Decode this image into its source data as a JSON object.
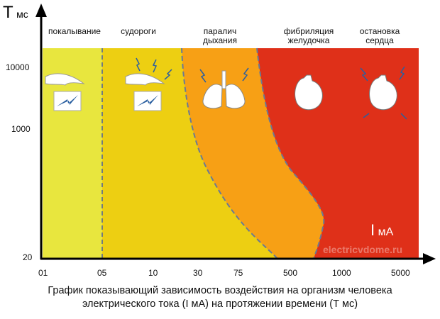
{
  "y_axis": {
    "label_big": "T",
    "label_small": "мс",
    "ticks": [
      "10000",
      "1000",
      "20"
    ]
  },
  "x_axis": {
    "label_big": "I",
    "label_small": "мА",
    "ticks": [
      "01",
      "05",
      "10",
      "30",
      "75",
      "500",
      "1000",
      "5000"
    ]
  },
  "zones": [
    {
      "label": "покалывание",
      "color": "#e8e63e",
      "icon": "hand-shock-icon"
    },
    {
      "label": "судороги",
      "color": "#edcf12",
      "icon": "hand-shock-sparks-icon"
    },
    {
      "label": "паралич\nдыхания",
      "color": "#f7a015",
      "icon": "lungs-icon"
    },
    {
      "label": "фибриляция\nжелудочка",
      "color": "#df3019",
      "icon": "heart-icon"
    },
    {
      "label": "остановка\nсердца",
      "color": "#df3019",
      "icon": "heart-sparks-icon"
    }
  ],
  "watermark": "electricvdome.ru",
  "caption": {
    "line1": "График показывающий зависимость воздействия на организм человека",
    "line2": "электрического тока (I мА) на протяжении времени (Т мс)"
  }
}
